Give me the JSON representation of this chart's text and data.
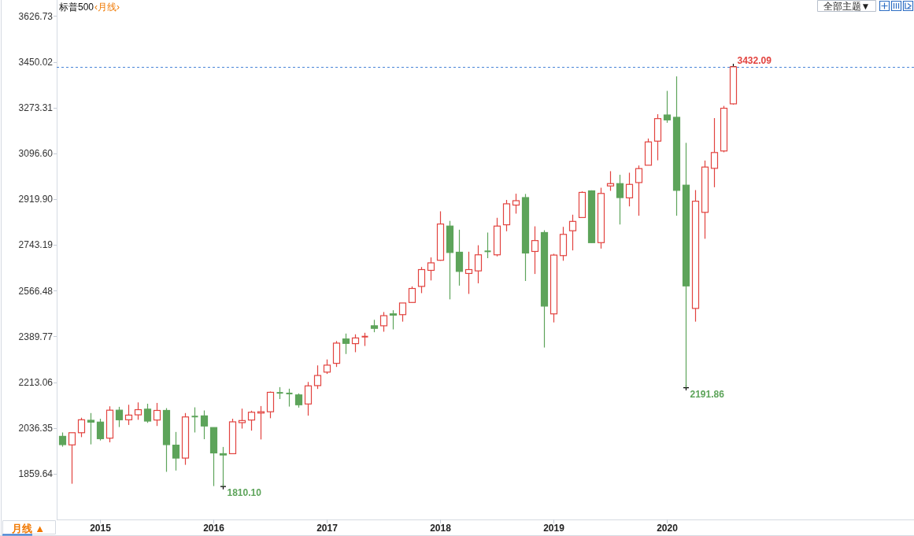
{
  "chart_data": {
    "type": "candlestick",
    "title": "标普500",
    "subtitle": "‹月线›",
    "x": [
      "2014-09",
      "2014-10",
      "2014-11",
      "2014-12",
      "2015-01",
      "2015-02",
      "2015-03",
      "2015-04",
      "2015-05",
      "2015-06",
      "2015-07",
      "2015-08",
      "2015-09",
      "2015-10",
      "2015-11",
      "2015-12",
      "2016-01",
      "2016-02",
      "2016-03",
      "2016-04",
      "2016-05",
      "2016-06",
      "2016-07",
      "2016-08",
      "2016-09",
      "2016-10",
      "2016-11",
      "2016-12",
      "2017-01",
      "2017-02",
      "2017-03",
      "2017-04",
      "2017-05",
      "2017-06",
      "2017-07",
      "2017-08",
      "2017-09",
      "2017-10",
      "2017-11",
      "2017-12",
      "2018-01",
      "2018-02",
      "2018-03",
      "2018-04",
      "2018-05",
      "2018-06",
      "2018-07",
      "2018-08",
      "2018-09",
      "2018-10",
      "2018-11",
      "2018-12",
      "2019-01",
      "2019-02",
      "2019-03",
      "2019-04",
      "2019-05",
      "2019-06",
      "2019-07",
      "2019-08",
      "2019-09",
      "2019-10",
      "2019-11",
      "2019-12",
      "2020-01",
      "2020-02",
      "2020-03",
      "2020-04",
      "2020-05",
      "2020-06",
      "2020-07",
      "2020-08"
    ],
    "ohlc": [
      [
        2004,
        2019,
        1964,
        1972
      ],
      [
        1971,
        2018,
        1821,
        2018
      ],
      [
        2018,
        2076,
        2001,
        2068
      ],
      [
        2066,
        2094,
        1973,
        2059
      ],
      [
        2059,
        2072,
        1988,
        1995
      ],
      [
        1997,
        2120,
        1981,
        2105
      ],
      [
        2105,
        2118,
        2040,
        2068
      ],
      [
        2068,
        2126,
        2048,
        2086
      ],
      [
        2087,
        2135,
        2068,
        2107
      ],
      [
        2109,
        2130,
        2056,
        2063
      ],
      [
        2067,
        2133,
        2044,
        2104
      ],
      [
        2104,
        2113,
        1867,
        1972
      ],
      [
        1970,
        2021,
        1872,
        1920
      ],
      [
        1920,
        2094,
        1894,
        2079
      ],
      [
        2081,
        2116,
        2019,
        2080
      ],
      [
        2083,
        2104,
        1993,
        2044
      ],
      [
        2038,
        2038,
        1812,
        1940
      ],
      [
        1937,
        1963,
        1810.1,
        1932
      ],
      [
        1937,
        2072,
        1937,
        2060
      ],
      [
        2057,
        2111,
        2034,
        2065
      ],
      [
        2067,
        2103,
        2026,
        2097
      ],
      [
        2094,
        2121,
        1992,
        2099
      ],
      [
        2099,
        2177,
        2074,
        2174
      ],
      [
        2173,
        2194,
        2148,
        2171
      ],
      [
        2171,
        2188,
        2119,
        2168
      ],
      [
        2164,
        2170,
        2115,
        2126
      ],
      [
        2129,
        2214,
        2084,
        2199
      ],
      [
        2200,
        2278,
        2187,
        2239
      ],
      [
        2252,
        2301,
        2245,
        2279
      ],
      [
        2286,
        2372,
        2272,
        2364
      ],
      [
        2380,
        2401,
        2322,
        2363
      ],
      [
        2362,
        2398,
        2329,
        2384
      ],
      [
        2388,
        2404,
        2353,
        2390
      ],
      [
        2431,
        2454,
        2406,
        2421
      ],
      [
        2431,
        2484,
        2408,
        2470
      ],
      [
        2477,
        2491,
        2417,
        2472
      ],
      [
        2474,
        2519,
        2447,
        2519
      ],
      [
        2521,
        2583,
        2520,
        2575
      ],
      [
        2583,
        2658,
        2557,
        2648
      ],
      [
        2645,
        2695,
        2606,
        2674
      ],
      [
        2684,
        2873,
        2682,
        2824
      ],
      [
        2816,
        2836,
        2533,
        2714
      ],
      [
        2715,
        2802,
        2586,
        2641
      ],
      [
        2633,
        2717,
        2554,
        2648
      ],
      [
        2643,
        2742,
        2595,
        2705
      ],
      [
        2719,
        2791,
        2692,
        2718
      ],
      [
        2705,
        2848,
        2699,
        2816
      ],
      [
        2821,
        2917,
        2796,
        2902
      ],
      [
        2897,
        2941,
        2864,
        2914
      ],
      [
        2926,
        2940,
        2604,
        2712
      ],
      [
        2718,
        2815,
        2631,
        2760
      ],
      [
        2791,
        2800,
        2347,
        2507
      ],
      [
        2477,
        2709,
        2444,
        2704
      ],
      [
        2702,
        2813,
        2682,
        2784
      ],
      [
        2798,
        2860,
        2722,
        2834
      ],
      [
        2849,
        2950,
        2849,
        2946
      ],
      [
        2952,
        2954,
        2751,
        2752
      ],
      [
        2752,
        2964,
        2729,
        2942
      ],
      [
        2971,
        3028,
        2952,
        2980
      ],
      [
        2980,
        3014,
        2822,
        2926
      ],
      [
        2925,
        3022,
        2892,
        2977
      ],
      [
        2984,
        3050,
        2856,
        3038
      ],
      [
        3051,
        3154,
        3051,
        3141
      ],
      [
        3144,
        3248,
        3070,
        3231
      ],
      [
        3245,
        3338,
        3215,
        3226
      ],
      [
        3236,
        3394,
        2856,
        2954
      ],
      [
        2974,
        3137,
        2191.86,
        2585
      ],
      [
        2498,
        2955,
        2447,
        2912
      ],
      [
        2869,
        3069,
        2767,
        3044
      ],
      [
        3039,
        3233,
        2966,
        3100
      ],
      [
        3106,
        3280,
        3101,
        3271
      ],
      [
        3288,
        3432.09,
        3285,
        3431
      ]
    ],
    "colors": [
      "#5da45a",
      "#e2433f",
      "#e2433f",
      "#5da45a",
      "#5da45a",
      "#e2433f",
      "#5da45a",
      "#e2433f",
      "#e2433f",
      "#5da45a",
      "#e2433f",
      "#5da45a",
      "#5da45a",
      "#e2433f",
      "#5da45a",
      "#5da45a",
      "#5da45a",
      "#5da45a",
      "#e2433f",
      "#e2433f",
      "#e2433f",
      "#e2433f",
      "#e2433f",
      "#5da45a",
      "#5da45a",
      "#5da45a",
      "#e2433f",
      "#e2433f",
      "#e2433f",
      "#e2433f",
      "#5da45a",
      "#e2433f",
      "#e2433f",
      "#5da45a",
      "#e2433f",
      "#5da45a",
      "#e2433f",
      "#e2433f",
      "#e2433f",
      "#e2433f",
      "#e2433f",
      "#5da45a",
      "#5da45a",
      "#e2433f",
      "#e2433f",
      "#5da45a",
      "#e2433f",
      "#e2433f",
      "#e2433f",
      "#5da45a",
      "#e2433f",
      "#5da45a",
      "#e2433f",
      "#e2433f",
      "#e2433f",
      "#e2433f",
      "#5da45a",
      "#e2433f",
      "#e2433f",
      "#5da45a",
      "#e2433f",
      "#e2433f",
      "#e2433f",
      "#e2433f",
      "#5da45a",
      "#5da45a",
      "#5da45a",
      "#e2433f",
      "#e2433f",
      "#e2433f",
      "#e2433f",
      "#e2433f"
    ],
    "xlim": [
      "2014-08-15",
      "2022-03-07"
    ],
    "ylim": [
      1683,
      3689
    ],
    "xticks": [
      {
        "value": "2015-01",
        "label": "2015"
      },
      {
        "value": "2016-01",
        "label": "2016"
      },
      {
        "value": "2017-01",
        "label": "2017"
      },
      {
        "value": "2018-01",
        "label": "2018"
      },
      {
        "value": "2019-01",
        "label": "2019"
      },
      {
        "value": "2020-01",
        "label": "2020"
      }
    ],
    "yticks": [
      1859.64,
      2036.35,
      2213.06,
      2389.77,
      2566.48,
      2743.19,
      {
        "value": 2919.9,
        "label": "2919.90"
      },
      {
        "value": 3096.6,
        "label": "3096.60"
      },
      3273.31,
      3450.02,
      3626.73
    ],
    "ref_lines": [
      {
        "axis": "y",
        "value": 3432.09,
        "color": "#4a86d8",
        "line_style": "dashed"
      }
    ],
    "annotations": [
      {
        "text": "3432.09",
        "x": "2020-08",
        "y": 3432.09
      },
      {
        "text": "2191.86",
        "x": "2020-03",
        "y": 2191.86
      },
      {
        "text": "1810.10",
        "x": "2016-02",
        "y": 1810.1
      },
      "全部主题▼",
      "月线 ▲"
    ]
  }
}
